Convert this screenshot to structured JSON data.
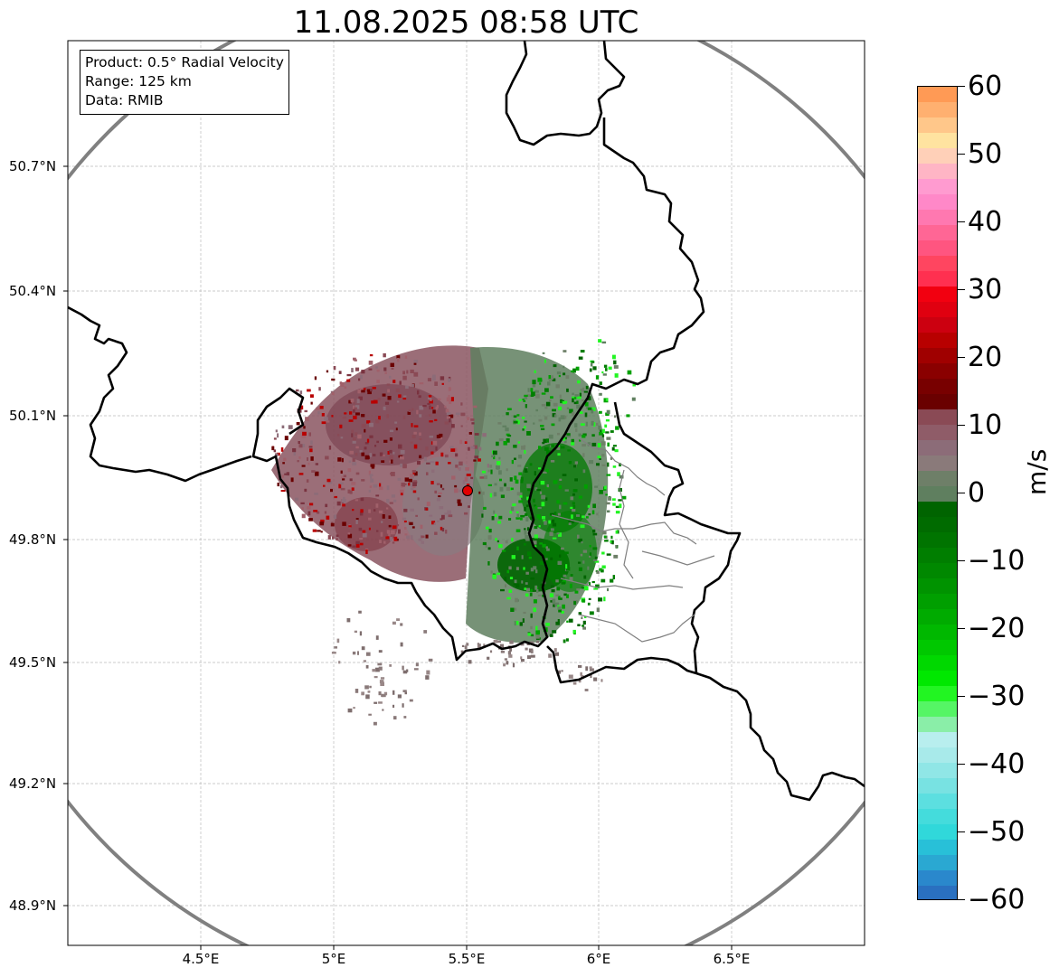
{
  "title": "11.08.2025 08:58 UTC",
  "info_box": {
    "product": "Product: 0.5° Radial Velocity",
    "range": "Range: 125 km",
    "data": "Data: RMIB"
  },
  "axes": {
    "lat_labels": [
      "50.7°N",
      "50.4°N",
      "50.1°N",
      "49.8°N",
      "49.5°N",
      "49.2°N",
      "48.9°N"
    ],
    "lon_labels": [
      "4.5°E",
      "5°E",
      "5.5°E",
      "6°E",
      "6.5°E"
    ],
    "gridlines": true
  },
  "colorbar": {
    "unit": "m/s",
    "min": -60,
    "max": 60,
    "tick_labels": [
      "60",
      "50",
      "40",
      "30",
      "20",
      "10",
      "0",
      "−10",
      "−20",
      "−30",
      "−40",
      "−50",
      "−60"
    ],
    "colors": [
      "#ff9a55",
      "#ffb070",
      "#ffc78a",
      "#ffe3a0",
      "#ffd0b8",
      "#ffb5c5",
      "#ff9bd0",
      "#ff88c8",
      "#ff78b0",
      "#ff6695",
      "#ff5580",
      "#ff4560",
      "#ff3050",
      "#f20010",
      "#e00010",
      "#cc0010",
      "#b80000",
      "#a00000",
      "#8a0000",
      "#780000",
      "#6a0000",
      "#8a4a55",
      "#8f5c68",
      "#8c6c78",
      "#8a7a7a",
      "#6e7f68",
      "#5f7f5f",
      "#006400",
      "#006b00",
      "#007400",
      "#007e00",
      "#008800",
      "#009300",
      "#009f00",
      "#00ab00",
      "#00b800",
      "#00c800",
      "#00d800",
      "#00e800",
      "#22f522",
      "#55f565",
      "#8aeea8",
      "#b8eeee",
      "#a8eaea",
      "#90e6e6",
      "#78e2e2",
      "#5cdfe0",
      "#44dcdc",
      "#30d8da",
      "#28c0d8",
      "#2aa8d2",
      "#2a88cc",
      "#2a70c0"
    ],
    "color_order": "top-to-bottom"
  },
  "radar_site": {
    "lon": 5.51,
    "lat": 49.91
  },
  "range_ring_km": 125
}
